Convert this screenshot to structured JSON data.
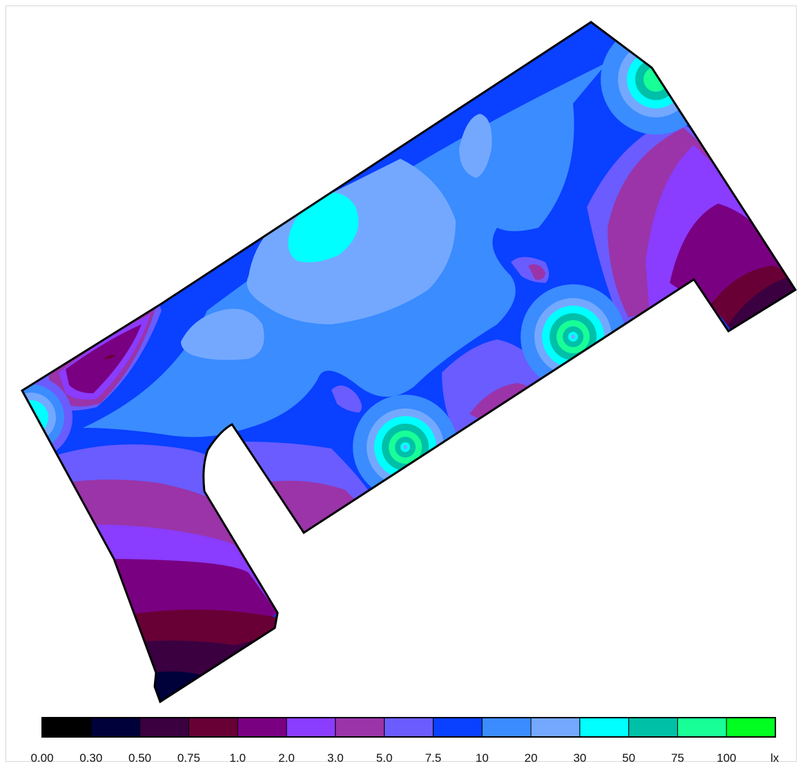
{
  "diagram": {
    "type": "illuminance-isoline-plan",
    "unit": "lx",
    "legend": {
      "bands": [
        {
          "from": "0.00",
          "color": "#000000"
        },
        {
          "from": "0.30",
          "color": "#00003a"
        },
        {
          "from": "0.50",
          "color": "#3a0040"
        },
        {
          "from": "0.75",
          "color": "#680036"
        },
        {
          "from": "1.0",
          "color": "#7a0082"
        },
        {
          "from": "2.0",
          "color": "#8a3cff"
        },
        {
          "from": "3.0",
          "color": "#9a34a8"
        },
        {
          "from": "5.0",
          "color": "#6a5cff"
        },
        {
          "from": "7.5",
          "color": "#0a40ff"
        },
        {
          "from": "10",
          "color": "#3a8cff"
        },
        {
          "from": "20",
          "color": "#74a8ff"
        },
        {
          "from": "30",
          "color": "#00ffff"
        },
        {
          "from": "50",
          "color": "#00c0a8"
        },
        {
          "from": "75",
          "color": "#18ff98"
        },
        {
          "from": "100",
          "color": "#00ff20"
        }
      ],
      "unit_label": "lx"
    }
  }
}
